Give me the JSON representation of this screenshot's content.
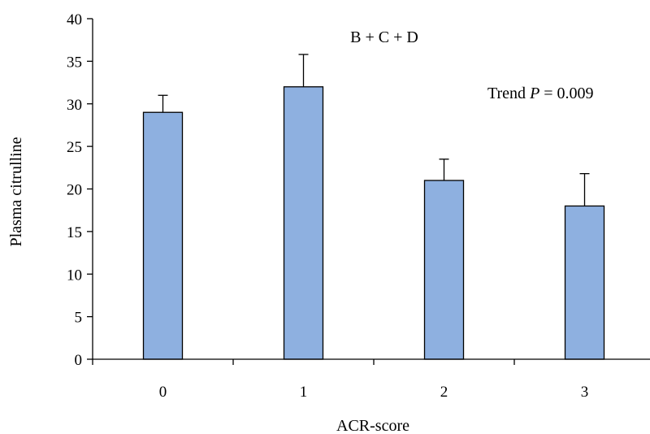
{
  "chart_data": {
    "type": "bar",
    "title": "",
    "xlabel": "ACR-score",
    "ylabel": "Plasma citrulline",
    "categories": [
      "0",
      "1",
      "2",
      "3"
    ],
    "series": [
      {
        "values": [
          29,
          32,
          21,
          18
        ],
        "error_upper": [
          2.0,
          3.8,
          2.5,
          3.8
        ],
        "color": "#8eb0e0"
      }
    ],
    "ylim": [
      0,
      40
    ],
    "yticks": [
      0,
      5,
      10,
      15,
      20,
      25,
      30,
      35,
      40
    ],
    "grid": false,
    "legend": "none",
    "annotations": {
      "group": "B + C + D",
      "trend_prefix": "Trend ",
      "trend_symbol": "P",
      "trend_value": " = 0.009"
    }
  }
}
